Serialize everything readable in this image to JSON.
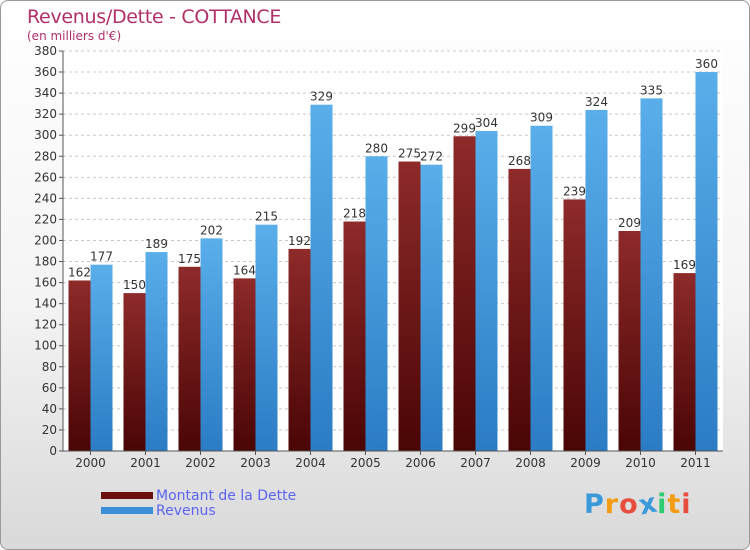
{
  "title": "Revenus/Dette - COTTANCE",
  "subtitle": "(en milliers d'€)",
  "logo": {
    "text": "Proxiti",
    "colors": [
      "#3a9ad9",
      "#f39c12",
      "#e74c3c",
      "#3a9ad9",
      "#2ecc71",
      "#f39c12",
      "#e74c3c"
    ]
  },
  "legend": [
    {
      "label": "Montant de la Dette",
      "color": "#6b0f0f"
    },
    {
      "label": "Revenus",
      "color": "#3b8fd6"
    }
  ],
  "chart_data": {
    "type": "bar",
    "categories": [
      "2000",
      "2001",
      "2002",
      "2003",
      "2004",
      "2005",
      "2006",
      "2007",
      "2008",
      "2009",
      "2010",
      "2011"
    ],
    "series": [
      {
        "name": "Montant de la Dette",
        "color": "#7a1a1a",
        "values": [
          162,
          150,
          175,
          164,
          192,
          218,
          275,
          299,
          268,
          239,
          209,
          169
        ]
      },
      {
        "name": "Revenus",
        "color": "#3b8fd6",
        "values": [
          177,
          189,
          202,
          215,
          329,
          280,
          272,
          304,
          309,
          324,
          335,
          360
        ]
      }
    ],
    "ylim": [
      0,
      380
    ],
    "ytick_step": 20,
    "grid": true
  }
}
